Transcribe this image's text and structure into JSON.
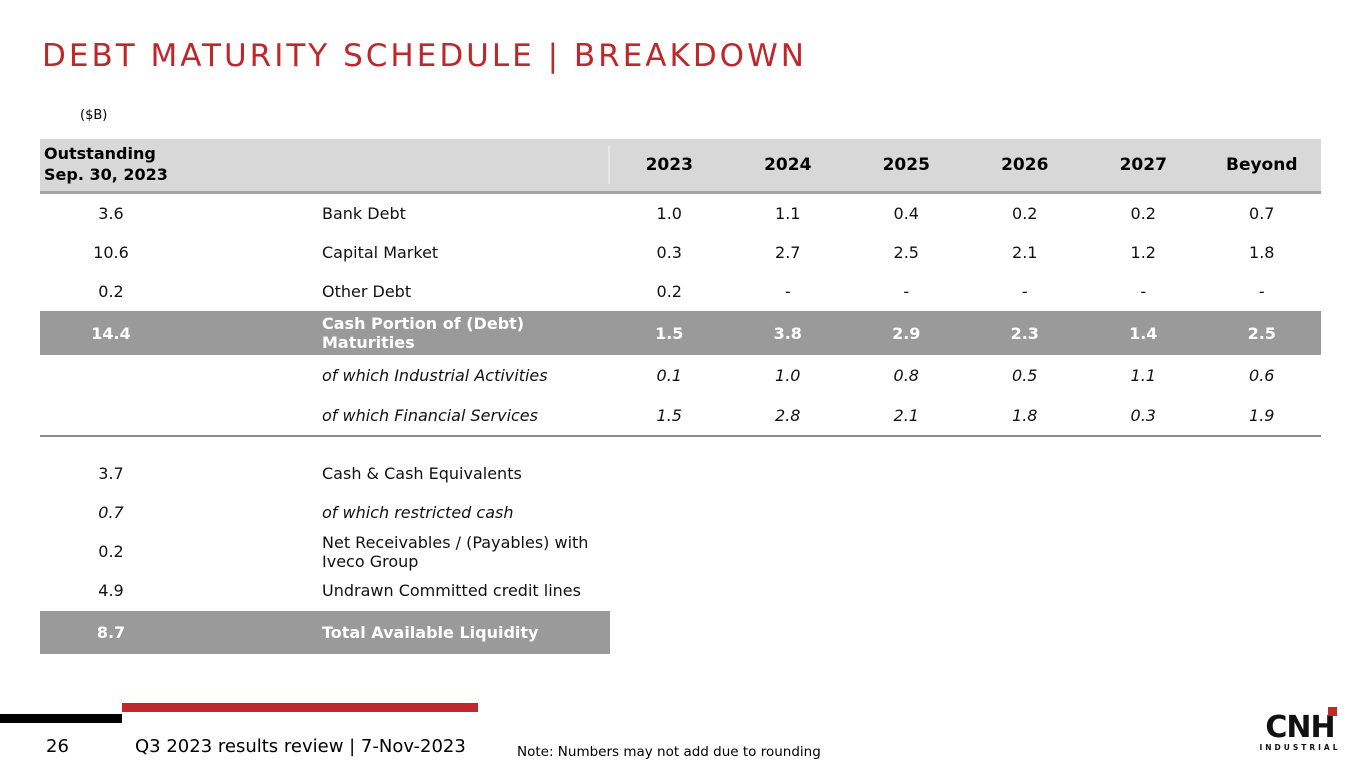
{
  "slide": {
    "title": "DEBT MATURITY SCHEDULE | BREAKDOWN",
    "units_label": "($B)",
    "colors": {
      "accent_red": "#BE282D",
      "header_bg": "#D8D8D8",
      "highlight_bg": "#9A9A9A"
    }
  },
  "table": {
    "row_header_line1": "Outstanding",
    "row_header_line2": "Sep. 30, 2023",
    "columns": [
      "2023",
      "2024",
      "2025",
      "2026",
      "2027",
      "Beyond"
    ],
    "rows": [
      {
        "outstanding": "3.6",
        "label": "Bank Debt",
        "values": [
          "1.0",
          "1.1",
          "0.4",
          "0.2",
          "0.2",
          "0.7"
        ]
      },
      {
        "outstanding": "10.6",
        "label": "Capital Market",
        "values": [
          "0.3",
          "2.7",
          "2.5",
          "2.1",
          "1.2",
          "1.8"
        ]
      },
      {
        "outstanding": "0.2",
        "label": "Other Debt",
        "values": [
          "0.2",
          "-",
          "-",
          "-",
          "-",
          "-"
        ]
      },
      {
        "outstanding": "14.4",
        "label": "Cash Portion of (Debt) Maturities",
        "values": [
          "1.5",
          "3.8",
          "2.9",
          "2.3",
          "1.4",
          "2.5"
        ]
      },
      {
        "outstanding": "",
        "label": "of which Industrial Activities",
        "values": [
          "0.1",
          "1.0",
          "0.8",
          "0.5",
          "1.1",
          "0.6"
        ]
      },
      {
        "outstanding": "",
        "label": "of which Financial Services",
        "values": [
          "1.5",
          "2.8",
          "2.1",
          "1.8",
          "0.3",
          "1.9"
        ]
      }
    ]
  },
  "liquidity": {
    "rows": [
      {
        "value": "3.7",
        "label": "Cash & Cash Equivalents"
      },
      {
        "value": "0.7",
        "label": "of which restricted cash"
      },
      {
        "value": "0.2",
        "label": "Net Receivables / (Payables) with Iveco Group"
      },
      {
        "value": "4.9",
        "label": "Undrawn Committed credit lines"
      },
      {
        "value": "8.7",
        "label": "Total Available Liquidity"
      }
    ]
  },
  "footer": {
    "page_number": "26",
    "caption": "Q3 2023 results review | 7-Nov-2023",
    "note": "Note: Numbers may not add due to rounding",
    "logo": {
      "text": "CNH",
      "subtext": "INDUSTRIAL"
    }
  }
}
